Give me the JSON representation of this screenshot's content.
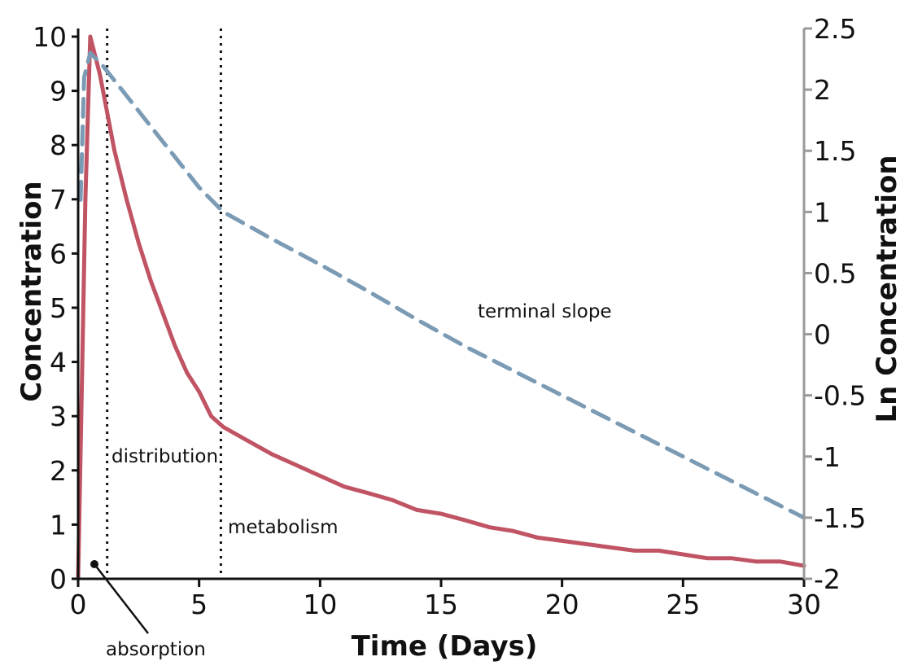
{
  "chart_data": {
    "type": "line",
    "xlabel": "Time (Days)",
    "ylabel": "Concentration",
    "y2label": "Ln Concentration",
    "xlim": [
      0,
      30
    ],
    "ylim": [
      0,
      10
    ],
    "y2lim": [
      -2,
      2.5
    ],
    "x_ticks": [
      "0",
      "5",
      "10",
      "15",
      "20",
      "25",
      "30"
    ],
    "y_ticks": [
      "0",
      "1",
      "2",
      "3",
      "4",
      "5",
      "6",
      "7",
      "8",
      "9",
      "10"
    ],
    "y2_ticks": [
      "-2",
      "-1.5",
      "-1",
      "-0.5",
      "0",
      "0.5",
      "1",
      "1.5",
      "2",
      "2.5"
    ],
    "grid": false,
    "colors": {
      "concentration": "#c05464",
      "ln_concentration": "#7b9bb5",
      "axis_left": "#111111",
      "axis_right": "#999999"
    },
    "series": [
      {
        "axis": "left",
        "style": "solid",
        "x": [
          0,
          0.15,
          0.3,
          0.5,
          0.9,
          1.5,
          2,
          2.5,
          3,
          3.5,
          4,
          4.5,
          5,
          5.5,
          6,
          7,
          8,
          9,
          10,
          11,
          12,
          13,
          14,
          15,
          16,
          17,
          18,
          19,
          20,
          21,
          22,
          23,
          24,
          25,
          26,
          27,
          28,
          29,
          30
        ],
        "values": [
          0,
          3.5,
          7.0,
          10.0,
          9.3,
          7.9,
          7.0,
          6.2,
          5.5,
          4.9,
          4.3,
          3.8,
          3.45,
          3.0,
          2.8,
          2.55,
          2.3,
          2.1,
          1.9,
          1.7,
          1.58,
          1.45,
          1.27,
          1.2,
          1.08,
          0.95,
          0.88,
          0.76,
          0.7,
          0.64,
          0.58,
          0.52,
          0.52,
          0.45,
          0.38,
          0.38,
          0.32,
          0.32,
          0.24
        ]
      },
      {
        "axis": "right",
        "style": "dashed",
        "x": [
          0.1,
          0.25,
          0.5,
          1,
          2,
          3,
          4,
          5,
          6,
          8,
          10,
          12,
          14,
          16,
          18,
          20,
          22,
          24,
          26,
          28,
          30
        ],
        "values": [
          1.1,
          2.1,
          2.3,
          2.2,
          1.95,
          1.7,
          1.45,
          1.2,
          1.0,
          0.78,
          0.57,
          0.35,
          0.12,
          -0.1,
          -0.3,
          -0.5,
          -0.7,
          -0.9,
          -1.1,
          -1.3,
          -1.5
        ]
      }
    ],
    "phase_lines": [
      1.2,
      5.9
    ],
    "annotations": {
      "absorption": "absorption",
      "distribution": "distribution",
      "metabolism": "metabolism",
      "terminal_slope": "terminal slope"
    }
  }
}
